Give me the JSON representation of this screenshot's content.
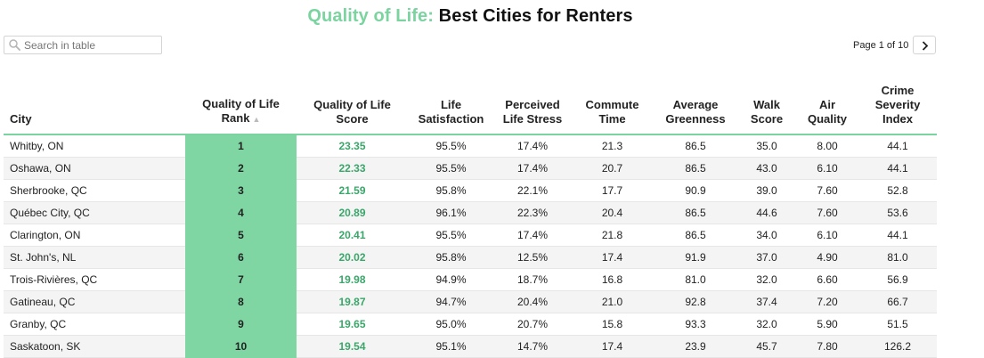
{
  "title": {
    "accent": "Quality of Life:",
    "main": "Best Cities for Renters"
  },
  "search": {
    "placeholder": "Search in table",
    "icon": "search-icon"
  },
  "pagination": {
    "label": "Page 1 of 10",
    "next_icon": "chevron-right-icon"
  },
  "colors": {
    "accent": "#7bd4a0",
    "rank_column": "#7fd6a3",
    "score_text": "#3aa66a"
  },
  "table": {
    "columns": [
      "City",
      "Quality of Life Rank",
      "Quality of Life Score",
      "Life Satisfaction",
      "Perceived Life Stress",
      "Commute Time",
      "Average Greenness",
      "Walk Score",
      "Air Quality",
      "Crime Severity Index"
    ],
    "sort": {
      "column": "Quality of Life Rank",
      "direction": "ascending"
    },
    "rows": [
      [
        "Whitby, ON",
        "1",
        "23.35",
        "95.5%",
        "17.4%",
        "21.3",
        "86.5",
        "35.0",
        "8.00",
        "44.1"
      ],
      [
        "Oshawa, ON",
        "2",
        "22.33",
        "95.5%",
        "17.4%",
        "20.7",
        "86.5",
        "43.0",
        "6.10",
        "44.1"
      ],
      [
        "Sherbrooke, QC",
        "3",
        "21.59",
        "95.8%",
        "22.1%",
        "17.7",
        "90.9",
        "39.0",
        "7.60",
        "52.8"
      ],
      [
        "Québec City, QC",
        "4",
        "20.89",
        "96.1%",
        "22.3%",
        "20.4",
        "86.5",
        "44.6",
        "7.60",
        "53.6"
      ],
      [
        "Clarington, ON",
        "5",
        "20.41",
        "95.5%",
        "17.4%",
        "21.8",
        "86.5",
        "34.0",
        "6.10",
        "44.1"
      ],
      [
        "St. John's, NL",
        "6",
        "20.02",
        "95.8%",
        "12.5%",
        "17.4",
        "91.9",
        "37.0",
        "4.90",
        "81.0"
      ],
      [
        "Trois-Rivières, QC",
        "7",
        "19.98",
        "94.9%",
        "18.7%",
        "16.8",
        "81.0",
        "32.0",
        "6.60",
        "56.9"
      ],
      [
        "Gatineau, QC",
        "8",
        "19.87",
        "94.7%",
        "20.4%",
        "21.0",
        "92.8",
        "37.4",
        "7.20",
        "66.7"
      ],
      [
        "Granby, QC",
        "9",
        "19.65",
        "95.0%",
        "20.7%",
        "15.8",
        "93.3",
        "32.0",
        "5.90",
        "51.5"
      ],
      [
        "Saskatoon, SK",
        "10",
        "19.54",
        "95.1%",
        "14.7%",
        "17.4",
        "23.9",
        "45.7",
        "7.80",
        "126.2"
      ]
    ]
  }
}
